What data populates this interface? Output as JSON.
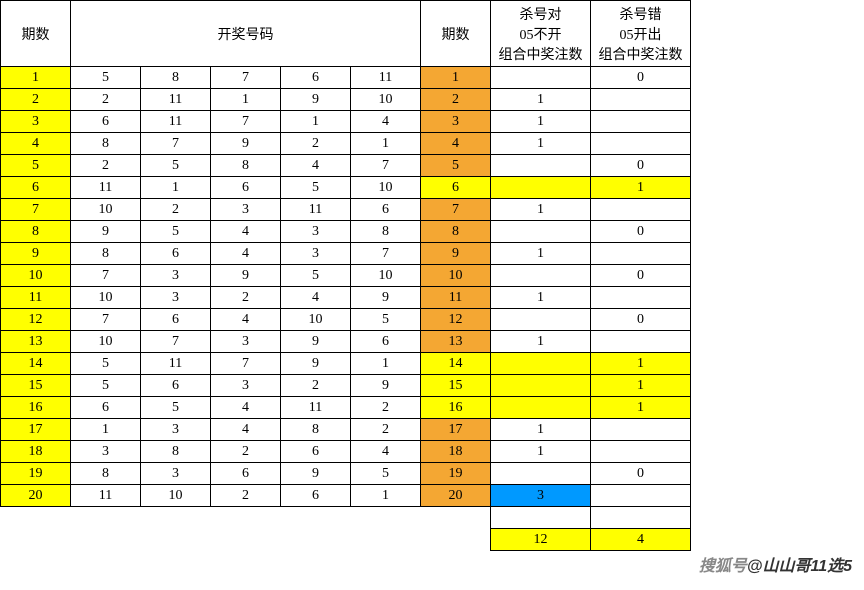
{
  "headers": {
    "period": "期数",
    "numbers": "开奖号码",
    "period2": "期数",
    "correct": "杀号对\n05不开\n组合中奖注数",
    "wrong": "杀号错\n05开出\n组合中奖注数"
  },
  "rows": [
    {
      "p": "1",
      "n": [
        "5",
        "8",
        "7",
        "6",
        "11"
      ],
      "p2": "1",
      "c": "",
      "w": "0",
      "hl": ""
    },
    {
      "p": "2",
      "n": [
        "2",
        "11",
        "1",
        "9",
        "10"
      ],
      "p2": "2",
      "c": "1",
      "w": "",
      "hl": ""
    },
    {
      "p": "3",
      "n": [
        "6",
        "11",
        "7",
        "1",
        "4"
      ],
      "p2": "3",
      "c": "1",
      "w": "",
      "hl": ""
    },
    {
      "p": "4",
      "n": [
        "8",
        "7",
        "9",
        "2",
        "1"
      ],
      "p2": "4",
      "c": "1",
      "w": "",
      "hl": ""
    },
    {
      "p": "5",
      "n": [
        "2",
        "5",
        "8",
        "4",
        "7"
      ],
      "p2": "5",
      "c": "",
      "w": "0",
      "hl": ""
    },
    {
      "p": "6",
      "n": [
        "11",
        "1",
        "6",
        "5",
        "10"
      ],
      "p2": "6",
      "c": "",
      "w": "1",
      "hl": "yellow"
    },
    {
      "p": "7",
      "n": [
        "10",
        "2",
        "3",
        "11",
        "6"
      ],
      "p2": "7",
      "c": "1",
      "w": "",
      "hl": ""
    },
    {
      "p": "8",
      "n": [
        "9",
        "5",
        "4",
        "3",
        "8"
      ],
      "p2": "8",
      "c": "",
      "w": "0",
      "hl": ""
    },
    {
      "p": "9",
      "n": [
        "8",
        "6",
        "4",
        "3",
        "7"
      ],
      "p2": "9",
      "c": "1",
      "w": "",
      "hl": ""
    },
    {
      "p": "10",
      "n": [
        "7",
        "3",
        "9",
        "5",
        "10"
      ],
      "p2": "10",
      "c": "",
      "w": "0",
      "hl": ""
    },
    {
      "p": "11",
      "n": [
        "10",
        "3",
        "2",
        "4",
        "9"
      ],
      "p2": "11",
      "c": "1",
      "w": "",
      "hl": ""
    },
    {
      "p": "12",
      "n": [
        "7",
        "6",
        "4",
        "10",
        "5"
      ],
      "p2": "12",
      "c": "",
      "w": "0",
      "hl": ""
    },
    {
      "p": "13",
      "n": [
        "10",
        "7",
        "3",
        "9",
        "6"
      ],
      "p2": "13",
      "c": "1",
      "w": "",
      "hl": ""
    },
    {
      "p": "14",
      "n": [
        "5",
        "11",
        "7",
        "9",
        "1"
      ],
      "p2": "14",
      "c": "",
      "w": "1",
      "hl": "yellow"
    },
    {
      "p": "15",
      "n": [
        "5",
        "6",
        "3",
        "2",
        "9"
      ],
      "p2": "15",
      "c": "",
      "w": "1",
      "hl": "yellow"
    },
    {
      "p": "16",
      "n": [
        "6",
        "5",
        "4",
        "11",
        "2"
      ],
      "p2": "16",
      "c": "",
      "w": "1",
      "hl": "yellow"
    },
    {
      "p": "17",
      "n": [
        "1",
        "3",
        "4",
        "8",
        "2"
      ],
      "p2": "17",
      "c": "1",
      "w": "",
      "hl": ""
    },
    {
      "p": "18",
      "n": [
        "3",
        "8",
        "2",
        "6",
        "4"
      ],
      "p2": "18",
      "c": "1",
      "w": "",
      "hl": ""
    },
    {
      "p": "19",
      "n": [
        "8",
        "3",
        "6",
        "9",
        "5"
      ],
      "p2": "19",
      "c": "",
      "w": "0",
      "hl": ""
    },
    {
      "p": "20",
      "n": [
        "11",
        "10",
        "2",
        "6",
        "1"
      ],
      "p2": "20",
      "c": "3",
      "w": "",
      "hl": "blue"
    }
  ],
  "totals": {
    "c": "12",
    "w": "4"
  },
  "watermark": {
    "prefix": "搜狐号",
    "suffix": "@山山哥11选5"
  },
  "colors": {
    "yellow": "#ffff00",
    "orange": "#f4a733",
    "blue": "#0099ff",
    "border": "#000000",
    "background": "#ffffff"
  }
}
